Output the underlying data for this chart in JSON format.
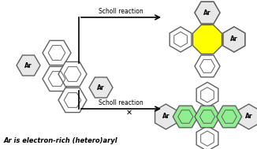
{
  "bg_color": "#ffffff",
  "text_scholl": "Scholl reaction",
  "text_caption": "Ar is electron-rich (hetero)aryl",
  "yellow_fill": "#ffff00",
  "green_fill": "#90ee90",
  "hex_fill": "#e8e8e8",
  "hex_edge": "#606060",
  "lw": 1.0,
  "font_size_ar": 5.5,
  "font_size_scholl": 5.5,
  "font_size_caption": 6.0,
  "ar_label": "Ar",
  "figw": 3.26,
  "figh": 1.89,
  "dpi": 100
}
